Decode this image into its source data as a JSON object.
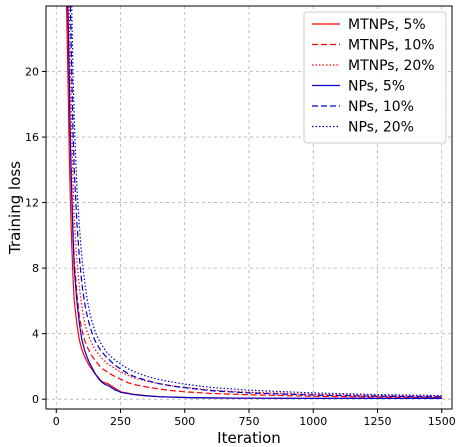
{
  "chart_data": {
    "type": "line",
    "title": "",
    "xlabel": "Iteration",
    "ylabel": "Training loss",
    "xlim": [
      -40,
      1540
    ],
    "ylim": [
      -0.6,
      24
    ],
    "xticks": [
      0,
      250,
      500,
      750,
      1000,
      1250,
      1500
    ],
    "yticks": [
      0,
      4,
      8,
      12,
      16,
      20
    ],
    "grid": true,
    "legend_position": "top-right",
    "series": [
      {
        "name": "MTNPs, 5%",
        "color": "#ff0000",
        "dash": "solid",
        "x": [
          40,
          45,
          50,
          55,
          60,
          65,
          70,
          80,
          90,
          100,
          110,
          120,
          130,
          140,
          150,
          160,
          170,
          180,
          190,
          200,
          210,
          220,
          230,
          240,
          250,
          275,
          300,
          350,
          400,
          500,
          600,
          750,
          1000,
          1250,
          1500
        ],
        "y": [
          24,
          20,
          15.5,
          12,
          9.5,
          7.5,
          6.0,
          4.6,
          3.6,
          3.0,
          2.6,
          2.3,
          2.0,
          1.8,
          1.55,
          1.4,
          1.2,
          1.05,
          1.0,
          0.95,
          0.85,
          0.75,
          0.65,
          0.55,
          0.45,
          0.38,
          0.3,
          0.22,
          0.15,
          0.1,
          0.07,
          0.06,
          0.05,
          0.05,
          0.05
        ]
      },
      {
        "name": "MTNPs, 10%",
        "color": "#ff0000",
        "dash": "dashed",
        "x": [
          45,
          50,
          55,
          60,
          65,
          70,
          80,
          90,
          100,
          110,
          120,
          130,
          140,
          150,
          160,
          170,
          180,
          190,
          200,
          220,
          240,
          260,
          280,
          300,
          350,
          400,
          450,
          500,
          600,
          750,
          1000,
          1250,
          1500
        ],
        "y": [
          24,
          20,
          16,
          13,
          10.5,
          8.5,
          6.5,
          5.0,
          4.2,
          3.6,
          3.2,
          2.9,
          2.6,
          2.4,
          2.2,
          2.0,
          1.85,
          1.75,
          1.65,
          1.45,
          1.3,
          1.15,
          1.0,
          0.9,
          0.75,
          0.62,
          0.52,
          0.45,
          0.35,
          0.27,
          0.18,
          0.13,
          0.1
        ]
      },
      {
        "name": "MTNPs, 20%",
        "color": "#ff0000",
        "dash": "dotted",
        "x": [
          50,
          55,
          60,
          65,
          70,
          80,
          90,
          100,
          110,
          120,
          130,
          140,
          150,
          160,
          170,
          180,
          190,
          200,
          220,
          240,
          260,
          280,
          300,
          350,
          400,
          450,
          500,
          600,
          750,
          1000,
          1250,
          1500
        ],
        "y": [
          24,
          20,
          16.5,
          13.5,
          11,
          8.5,
          6.8,
          5.6,
          4.7,
          4.1,
          3.7,
          3.35,
          3.05,
          2.85,
          2.65,
          2.45,
          2.3,
          2.15,
          1.95,
          1.75,
          1.6,
          1.45,
          1.3,
          1.1,
          0.95,
          0.82,
          0.72,
          0.55,
          0.42,
          0.3,
          0.22,
          0.18
        ]
      },
      {
        "name": "NPs, 5%",
        "color": "#0000cc",
        "dash": "solid",
        "x": [
          45,
          50,
          55,
          60,
          65,
          70,
          80,
          90,
          100,
          110,
          120,
          130,
          140,
          150,
          160,
          170,
          180,
          190,
          200,
          210,
          220,
          230,
          240,
          250,
          275,
          300,
          350,
          400,
          500,
          600,
          750,
          1000,
          1250,
          1500
        ],
        "y": [
          24,
          20,
          15.5,
          12.5,
          10,
          8,
          6.0,
          4.6,
          3.6,
          3.0,
          2.55,
          2.2,
          1.9,
          1.6,
          1.35,
          1.15,
          1.0,
          0.9,
          0.85,
          0.75,
          0.65,
          0.55,
          0.5,
          0.42,
          0.35,
          0.28,
          0.2,
          0.15,
          0.1,
          0.08,
          0.06,
          0.05,
          0.05,
          0.05
        ]
      },
      {
        "name": "NPs, 10%",
        "color": "#0000cc",
        "dash": "dashed",
        "x": [
          55,
          60,
          65,
          70,
          80,
          90,
          100,
          110,
          120,
          130,
          140,
          150,
          160,
          170,
          180,
          190,
          200,
          220,
          240,
          260,
          280,
          300,
          350,
          400,
          450,
          500,
          600,
          750,
          1000,
          1250,
          1500
        ],
        "y": [
          24,
          20,
          16.5,
          14,
          10.8,
          8.6,
          7.0,
          5.9,
          5.1,
          4.5,
          4.0,
          3.6,
          3.3,
          3.05,
          2.85,
          2.65,
          2.5,
          2.2,
          1.95,
          1.75,
          1.55,
          1.4,
          1.15,
          0.95,
          0.8,
          0.7,
          0.52,
          0.38,
          0.25,
          0.18,
          0.14
        ]
      },
      {
        "name": "NPs, 20%",
        "color": "#0000cc",
        "dash": "dotted",
        "x": [
          60,
          65,
          70,
          80,
          90,
          100,
          110,
          120,
          130,
          140,
          150,
          160,
          170,
          180,
          190,
          200,
          220,
          240,
          260,
          280,
          300,
          350,
          400,
          450,
          500,
          600,
          750,
          1000,
          1250,
          1500
        ],
        "y": [
          24,
          20,
          17,
          13,
          10.5,
          8.6,
          7.2,
          6.1,
          5.3,
          4.7,
          4.2,
          3.8,
          3.5,
          3.25,
          3.0,
          2.8,
          2.5,
          2.25,
          2.05,
          1.85,
          1.7,
          1.4,
          1.2,
          1.05,
          0.92,
          0.72,
          0.55,
          0.38,
          0.28,
          0.22
        ]
      }
    ]
  }
}
